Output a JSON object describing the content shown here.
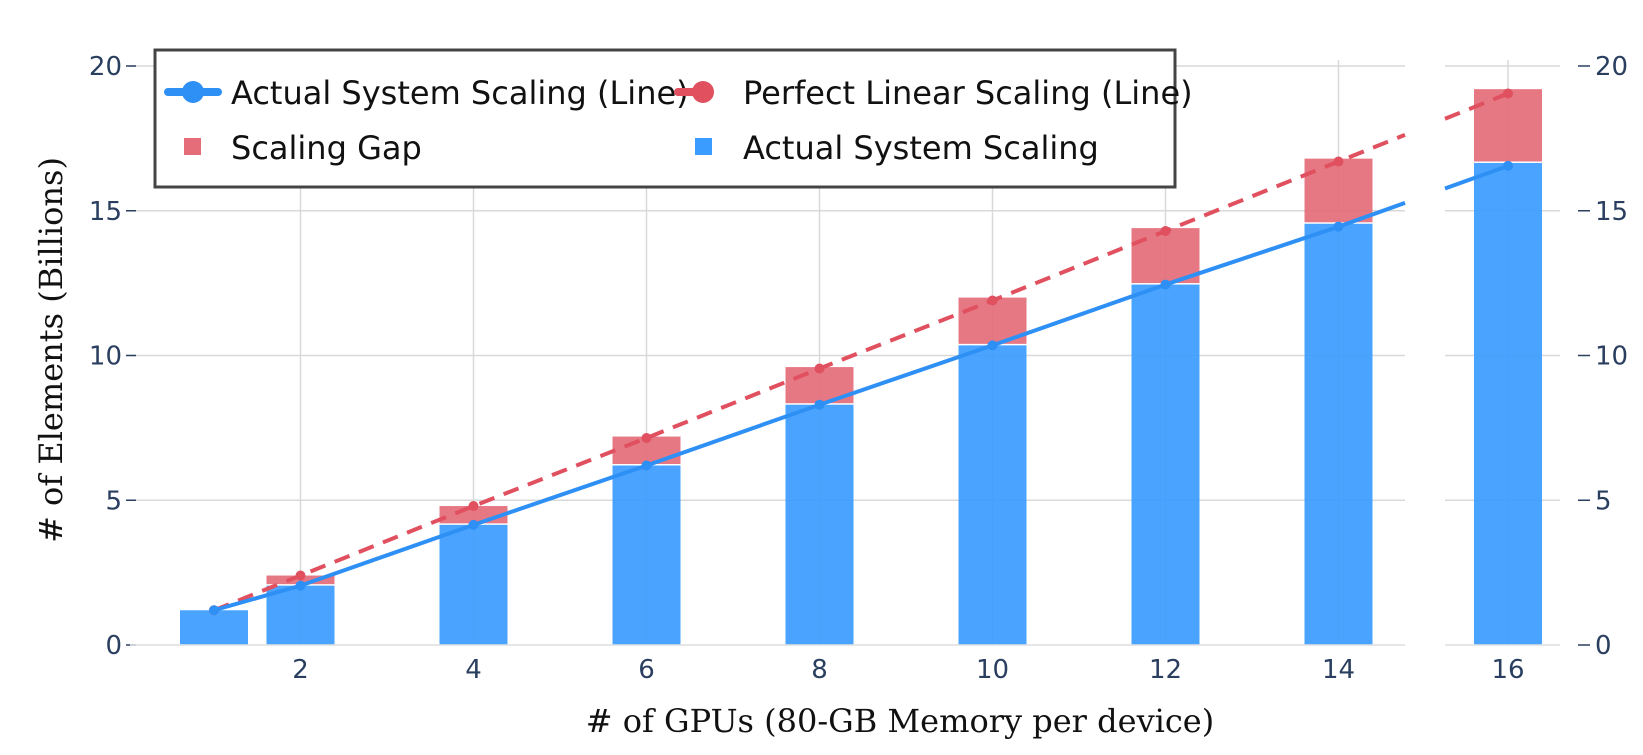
{
  "chart_data": {
    "type": "bar",
    "xlabel": "# of GPUs (80-GB Memory per device)",
    "ylabel": "# of Elements (Billions)",
    "ylim": [
      0,
      20
    ],
    "y_ticks": [
      0,
      5,
      10,
      15,
      20
    ],
    "x_ticks": [
      2,
      4,
      6,
      8,
      10,
      12,
      14,
      16
    ],
    "x_axis_break": "between 14 and 16",
    "grid": true,
    "legend_placement": "top-left",
    "x": [
      1,
      2,
      4,
      6,
      8,
      10,
      12,
      14,
      16
    ],
    "series": [
      {
        "name": "Actual System Scaling",
        "kind": "bar",
        "color": "#3b9cff",
        "values": [
          1.2,
          2.05,
          4.15,
          6.2,
          8.3,
          10.35,
          12.45,
          14.55,
          16.65
        ]
      },
      {
        "name": "Scaling Gap",
        "kind": "bar-stacked",
        "color": "#e46d79",
        "values": [
          0,
          0.35,
          0.65,
          1.0,
          1.3,
          1.65,
          1.95,
          2.25,
          2.55
        ]
      },
      {
        "name": "Actual System Scaling (Line)",
        "kind": "line",
        "color": "#2e90f5",
        "values": [
          1.2,
          2.05,
          4.15,
          6.2,
          8.3,
          10.35,
          12.45,
          14.45,
          16.55
        ]
      },
      {
        "name": "Perfect Linear Scaling (Line)",
        "kind": "line-dashed",
        "color": "#e0505f",
        "values": [
          1.2,
          2.4,
          4.8,
          7.15,
          9.55,
          11.9,
          14.3,
          16.7,
          19.05
        ]
      }
    ]
  }
}
